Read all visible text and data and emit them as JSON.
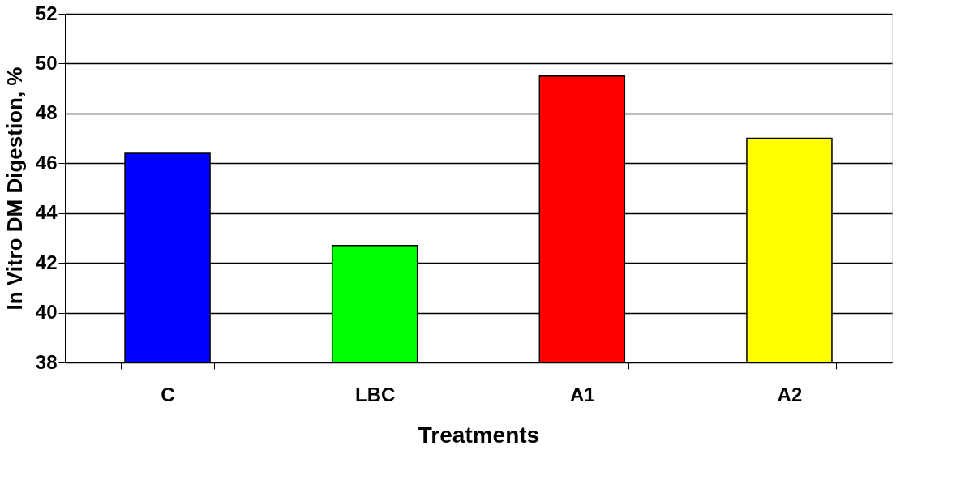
{
  "chart_data": {
    "type": "bar",
    "xlabel": "Treatments",
    "ylabel": "In Vitro DM Digestion, %",
    "categories": [
      "C",
      "LBC",
      "A1",
      "A2"
    ],
    "values": [
      46.4,
      42.7,
      49.5,
      47.0
    ],
    "colors": [
      "#0000ff",
      "#00ff00",
      "#ff0000",
      "#ffff00"
    ],
    "ylim": [
      38,
      52
    ],
    "yticks": [
      38,
      40,
      42,
      44,
      46,
      48,
      50,
      52
    ],
    "grid": "y"
  }
}
